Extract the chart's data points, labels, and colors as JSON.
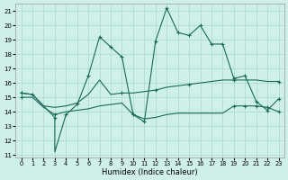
{
  "xlabel": "Humidex (Indice chaleur)",
  "background_color": "#cff0e8",
  "grid_color": "#a8d8cc",
  "line_color": "#1a6b5a",
  "xlim": [
    -0.5,
    23.5
  ],
  "ylim": [
    10.8,
    21.5
  ],
  "yticks": [
    11,
    12,
    13,
    14,
    15,
    16,
    17,
    18,
    19,
    20,
    21
  ],
  "xticks": [
    0,
    1,
    2,
    3,
    4,
    5,
    6,
    7,
    8,
    9,
    10,
    11,
    12,
    13,
    14,
    15,
    16,
    17,
    18,
    19,
    20,
    21,
    22,
    23
  ],
  "line1_x": [
    0,
    1,
    2,
    3,
    3,
    4,
    5,
    6,
    7,
    8,
    9,
    10,
    11,
    12,
    13,
    14,
    15,
    16,
    17,
    18,
    19,
    20,
    21,
    22,
    23
  ],
  "line1_y": [
    15.3,
    15.2,
    14.4,
    13.6,
    11.2,
    13.8,
    14.5,
    16.5,
    19.2,
    18.5,
    17.8,
    13.8,
    13.3,
    18.9,
    21.2,
    19.5,
    19.3,
    20.0,
    18.7,
    18.7,
    16.3,
    16.5,
    14.7,
    14.1,
    14.9
  ],
  "line1_marks_x": [
    0,
    1,
    3,
    4,
    6,
    7,
    8,
    9,
    10,
    11,
    12,
    13,
    14,
    15,
    16,
    17,
    18,
    19,
    20,
    21,
    22,
    23
  ],
  "line1_marks_y": [
    15.3,
    15.2,
    13.6,
    13.8,
    16.5,
    19.2,
    18.5,
    17.8,
    13.8,
    13.3,
    18.9,
    21.2,
    19.5,
    19.3,
    20.0,
    18.7,
    18.7,
    16.3,
    16.5,
    14.7,
    14.1,
    14.9
  ],
  "line2_x": [
    0,
    1,
    2,
    3,
    4,
    5,
    6,
    7,
    8,
    9,
    10,
    11,
    12,
    13,
    14,
    15,
    16,
    17,
    18,
    19,
    20,
    21,
    22,
    23
  ],
  "line2_y": [
    15.3,
    15.2,
    14.4,
    14.3,
    14.4,
    14.6,
    15.2,
    16.2,
    15.2,
    15.3,
    15.3,
    15.4,
    15.5,
    15.7,
    15.8,
    15.9,
    16.0,
    16.1,
    16.2,
    16.2,
    16.2,
    16.2,
    16.1,
    16.1
  ],
  "line2_marks_x": [
    0,
    5,
    9,
    12,
    15,
    19,
    23
  ],
  "line2_marks_y": [
    15.3,
    14.6,
    15.3,
    15.5,
    15.9,
    16.2,
    16.1
  ],
  "line3_x": [
    0,
    1,
    2,
    3,
    4,
    5,
    6,
    7,
    8,
    9,
    10,
    11,
    12,
    13,
    14,
    15,
    16,
    17,
    18,
    19,
    20,
    21,
    22,
    23
  ],
  "line3_y": [
    15.0,
    15.0,
    14.3,
    13.8,
    14.0,
    14.1,
    14.2,
    14.4,
    14.5,
    14.6,
    13.8,
    13.5,
    13.6,
    13.8,
    13.9,
    13.9,
    13.9,
    13.9,
    13.9,
    14.4,
    14.4,
    14.4,
    14.3,
    14.0
  ],
  "line3_marks_x": [
    0,
    3,
    10,
    19,
    20,
    21,
    22,
    23
  ],
  "line3_marks_y": [
    15.0,
    13.8,
    13.8,
    14.4,
    14.4,
    14.4,
    14.3,
    14.0
  ]
}
